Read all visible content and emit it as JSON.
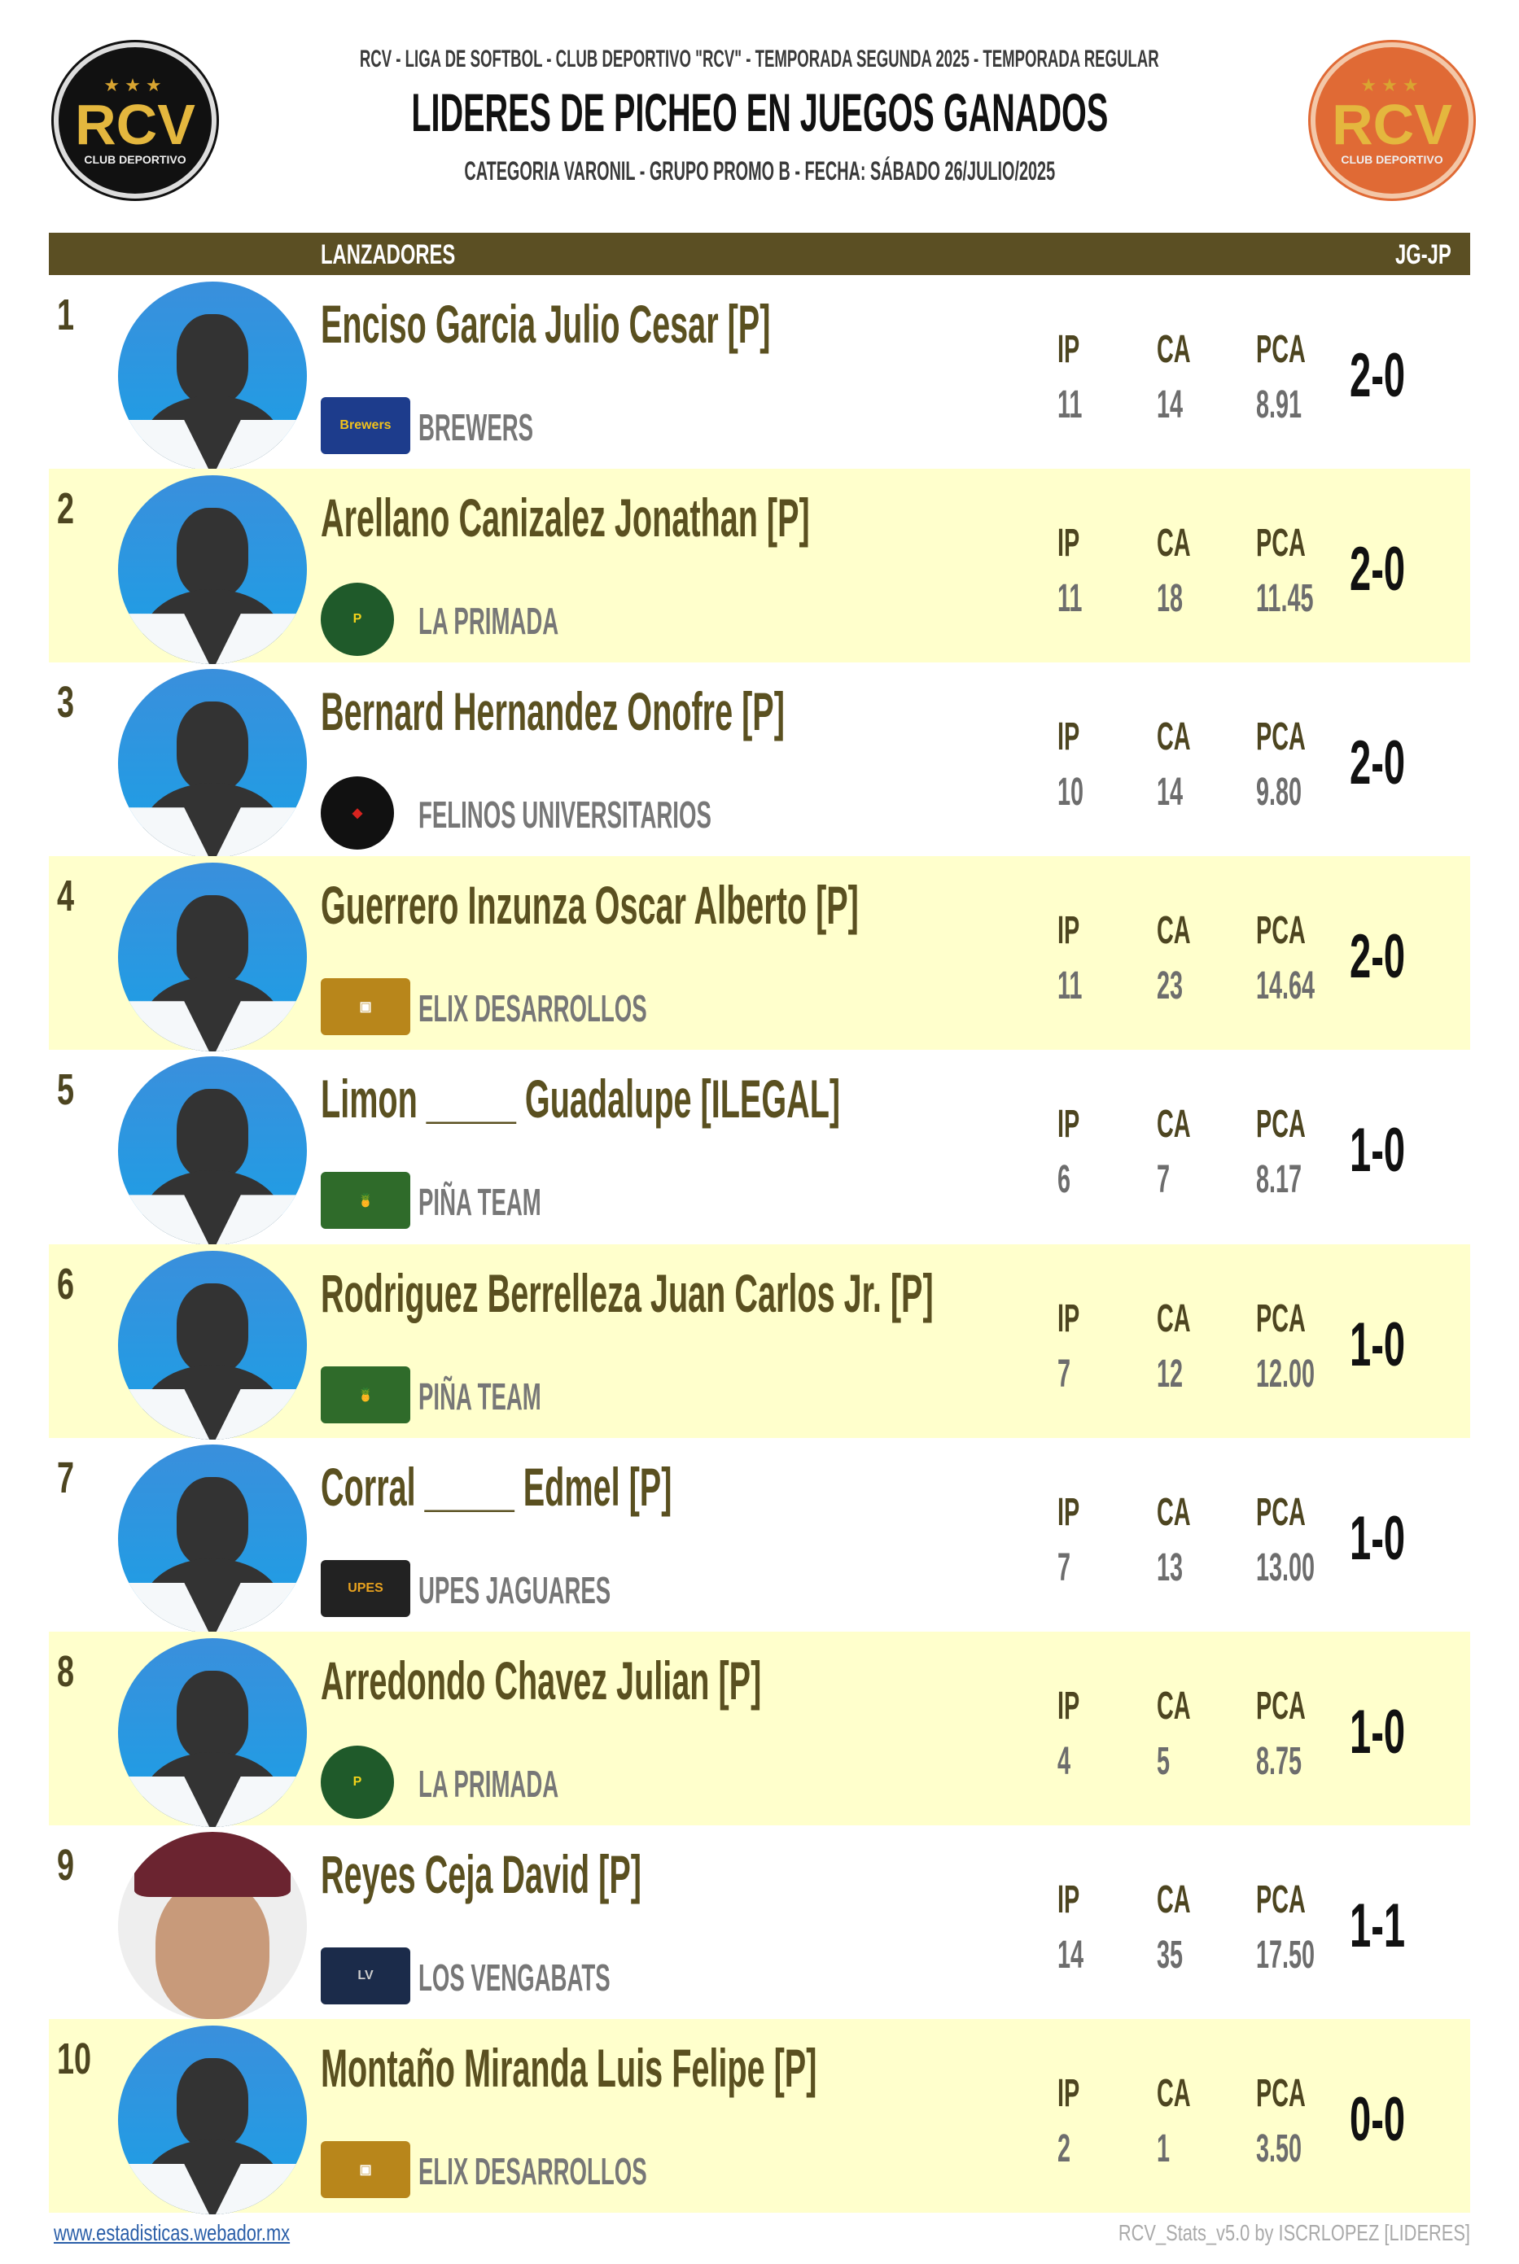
{
  "header": {
    "league_line": "RCV - LIGA DE SOFTBOL - CLUB DEPORTIVO \"RCV\" - TEMPORADA SEGUNDA 2025 - TEMPORADA REGULAR",
    "title": "LIDERES DE PICHEO EN JUEGOS GANADOS",
    "subtitle": "CATEGORIA VARONIL - GRUPO PROMO B - FECHA: SÁBADO 26/JULIO/2025",
    "logo_text": "RCV",
    "logo_sub": "CLUB DEPORTIVO"
  },
  "table": {
    "col_pitchers": "LANZADORES",
    "col_record": "JG-JP",
    "stat_labels": [
      "IP",
      "CA",
      "PCA"
    ],
    "rows": [
      {
        "rank": "1",
        "name": "Enciso Garcia Julio Cesar [P]",
        "team": "BREWERS",
        "team_icon": "brewers-logo",
        "ip": "11",
        "ca": "14",
        "pca": "8.91",
        "record": "2-0",
        "photo": false
      },
      {
        "rank": "2",
        "name": "Arellano Canizalez Jonathan [P]",
        "team": "LA PRIMADA",
        "team_icon": "la-primada-logo",
        "ip": "11",
        "ca": "18",
        "pca": "11.45",
        "record": "2-0",
        "photo": false
      },
      {
        "rank": "3",
        "name": "Bernard Hernandez Onofre [P]",
        "team": "FELINOS UNIVERSITARIOS",
        "team_icon": "felinos-logo",
        "ip": "10",
        "ca": "14",
        "pca": "9.80",
        "record": "2-0",
        "photo": false
      },
      {
        "rank": "4",
        "name": "Guerrero Inzunza Oscar Alberto [P]",
        "team": "ELIX DESARROLLOS",
        "team_icon": "elix-logo",
        "ip": "11",
        "ca": "23",
        "pca": "14.64",
        "record": "2-0",
        "photo": false
      },
      {
        "rank": "5",
        "name": "Limon _____ Guadalupe [ILEGAL]",
        "team": "PIÑA TEAM",
        "team_icon": "pina-team-logo",
        "ip": "6",
        "ca": "7",
        "pca": "8.17",
        "record": "1-0",
        "photo": false
      },
      {
        "rank": "6",
        "name": "Rodriguez Berrelleza Juan Carlos Jr. [P]",
        "team": "PIÑA TEAM",
        "team_icon": "pina-team-logo",
        "ip": "7",
        "ca": "12",
        "pca": "12.00",
        "record": "1-0",
        "photo": false
      },
      {
        "rank": "7",
        "name": "Corral _____ Edmel [P]",
        "team": "UPES JAGUARES",
        "team_icon": "upes-jaguares-logo",
        "ip": "7",
        "ca": "13",
        "pca": "13.00",
        "record": "1-0",
        "photo": false
      },
      {
        "rank": "8",
        "name": "Arredondo Chavez Julian [P]",
        "team": "LA PRIMADA",
        "team_icon": "la-primada-logo",
        "ip": "4",
        "ca": "5",
        "pca": "8.75",
        "record": "1-0",
        "photo": false
      },
      {
        "rank": "9",
        "name": "Reyes Ceja David [P]",
        "team": "LOS VENGABATS",
        "team_icon": "vengabats-logo",
        "ip": "14",
        "ca": "35",
        "pca": "17.50",
        "record": "1-1",
        "photo": true
      },
      {
        "rank": "10",
        "name": "Montaño Miranda Luis Felipe [P]",
        "team": "ELIX DESARROLLOS",
        "team_icon": "elix-logo",
        "ip": "2",
        "ca": "1",
        "pca": "3.50",
        "record": "0-0",
        "photo": false
      }
    ]
  },
  "footer": {
    "link": "www.estadisticas.webador.mx",
    "credit": "RCV_Stats_v5.0 by ISCRLOPEZ [LIDERES]"
  },
  "colors": {
    "header_bar": "#5b4f23",
    "alt_row": "#ffffcc",
    "name": "#5a5020",
    "logo_right": "#e06a35"
  }
}
